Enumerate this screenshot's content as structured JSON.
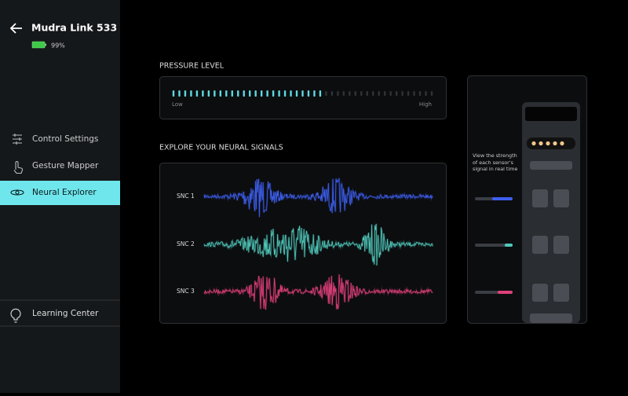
{
  "header": {
    "title": "Mudra Link 533",
    "battery": "99%"
  },
  "nav": {
    "items": [
      "Control Settings",
      "Gesture Mapper",
      "Neural Explorer"
    ],
    "active": 2,
    "footer": "Learning Center"
  },
  "pressure": {
    "title": "PRESSURE LEVEL",
    "low": "Low",
    "high": "High",
    "level": 26,
    "segments": 45,
    "color": "#5fd8e0"
  },
  "signals": {
    "title": "EXPLORE YOUR NEURAL SIGNALS",
    "channels": [
      {
        "label": "SNC 1",
        "color": "#3d5ff0"
      },
      {
        "label": "SNC 2",
        "color": "#4fc9bb"
      },
      {
        "label": "SNC 3",
        "color": "#e0407a"
      }
    ]
  },
  "device": {
    "caption": "View the strength of each sensor's signal in real time"
  }
}
